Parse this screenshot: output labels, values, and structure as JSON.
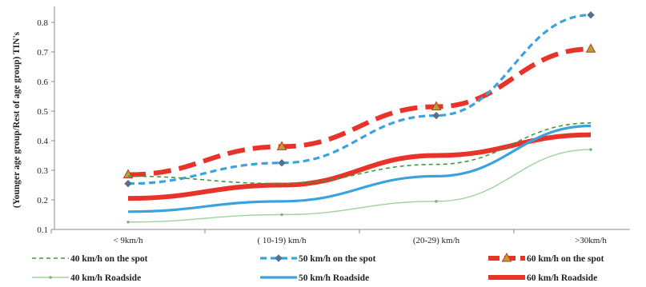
{
  "chart_data": {
    "type": "line",
    "ylabel": "(Younger age group/Rest of age group) TIN's",
    "xlabel": "",
    "categories": [
      "< 9km/h",
      "( 10-19) km/h",
      "(20-29) km/h",
      ">30km/h"
    ],
    "ylim": [
      0.1,
      0.85
    ],
    "yticks": [
      "0.1",
      "0.2",
      "0.3",
      "0.4",
      "0.5",
      "0.6",
      "0.7",
      "0.8"
    ],
    "legend_position": "bottom",
    "grid": false,
    "series": [
      {
        "name": "40 km/h on the spot",
        "values": [
          0.28,
          0.255,
          0.32,
          0.46
        ],
        "color": "#3a9a3a",
        "style": "dashed-thin",
        "marker": "none"
      },
      {
        "name": "50 km/h on the spot",
        "values": [
          0.255,
          0.325,
          0.485,
          0.825
        ],
        "color": "#3aa3dd",
        "style": "dashed-medium",
        "marker": "diamond"
      },
      {
        "name": "60 km/h on the spot",
        "values": [
          0.285,
          0.38,
          0.515,
          0.71
        ],
        "color": "#e8332a",
        "style": "dashed-thick",
        "marker": "triangle"
      },
      {
        "name": "40 km/h Roadside",
        "values": [
          0.125,
          0.15,
          0.195,
          0.37
        ],
        "color": "#9cd39a",
        "style": "solid-thin",
        "marker": "dot"
      },
      {
        "name": "50 km/h Roadside",
        "values": [
          0.16,
          0.195,
          0.28,
          0.45
        ],
        "color": "#3aa3dd",
        "style": "solid-medium",
        "marker": "none"
      },
      {
        "name": "60 km/h Roadside",
        "values": [
          0.205,
          0.25,
          0.35,
          0.42
        ],
        "color": "#e8332a",
        "style": "solid-thick",
        "marker": "none"
      }
    ]
  }
}
